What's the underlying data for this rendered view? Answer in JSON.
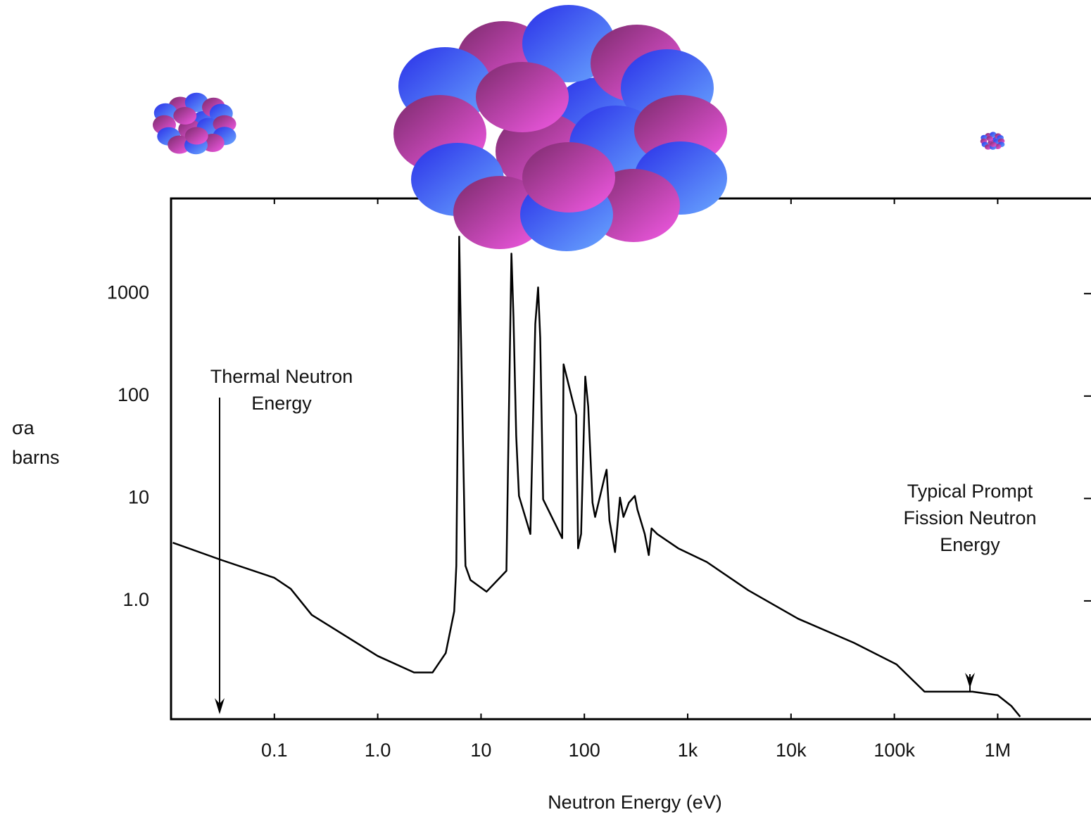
{
  "chart_data": {
    "type": "line",
    "xlabel": "Neutron Energy (eV)",
    "ylabel": "σa",
    "ylabel_unit": "barns",
    "xscale": "log",
    "yscale": "log",
    "xlim": [
      0.01,
      8000000
    ],
    "ylim": [
      0.07,
      8500
    ],
    "xticks": [
      0.1,
      {
        "value": 1,
        "label": "1.0"
      },
      10,
      100,
      {
        "value": 1000,
        "label": "1k"
      },
      {
        "value": 10000,
        "label": "10k"
      },
      {
        "value": 100000,
        "label": "100k"
      },
      {
        "value": 1000000,
        "label": "1M"
      }
    ],
    "yticks": [
      1000,
      100,
      10,
      {
        "value": 1,
        "label": "1.0"
      }
    ],
    "color": "#000000",
    "annotations": [
      [
        "Thermal Neutron",
        "Energy"
      ],
      [
        "Typical Prompt",
        "Fission Neutron",
        "Energy"
      ]
    ],
    "x": [
      0.0104,
      0.031,
      0.1,
      0.144,
      0.23,
      1.0,
      2.25,
      3.4,
      4.56,
      5.5,
      5.77,
      6.05,
      6.15,
      6.3,
      6.67,
      6.96,
      7.07,
      7.9,
      11.3,
      17.6,
      18.2,
      19.7,
      20.6,
      21.9,
      23.3,
      30,
      33.5,
      35.7,
      37.4,
      39.9,
      61,
      62.9,
      83.3,
      87,
      93,
      102,
      109,
      120,
      127,
      156,
      164,
      175,
      198,
      221,
      239,
      270,
      308,
      326,
      384,
      420,
      447,
      506,
      810,
      1530,
      3860,
      11700,
      40500,
      105000,
      196000,
      570000,
      1000000,
      1360000,
      1650000
    ],
    "values": [
      3.7,
      2.5,
      1.68,
      1.31,
      0.73,
      0.29,
      0.2,
      0.2,
      0.31,
      0.79,
      2.2,
      316,
      3600,
      810,
      40.7,
      4.5,
      2.2,
      1.6,
      1.23,
      1.97,
      17,
      2460,
      594,
      40.7,
      10.6,
      4.5,
      505,
      1150,
      370,
      9.8,
      4.1,
      204,
      65,
      3.26,
      4.5,
      155,
      79,
      9.1,
      6.6,
      15.8,
      19.1,
      6.1,
      3.0,
      10.2,
      6.6,
      9.1,
      10.6,
      7.8,
      4.5,
      2.8,
      5.1,
      4.5,
      3.26,
      2.4,
      1.27,
      0.67,
      0.39,
      0.24,
      0.13,
      0.13,
      0.12,
      0.094,
      0.074
    ]
  }
}
